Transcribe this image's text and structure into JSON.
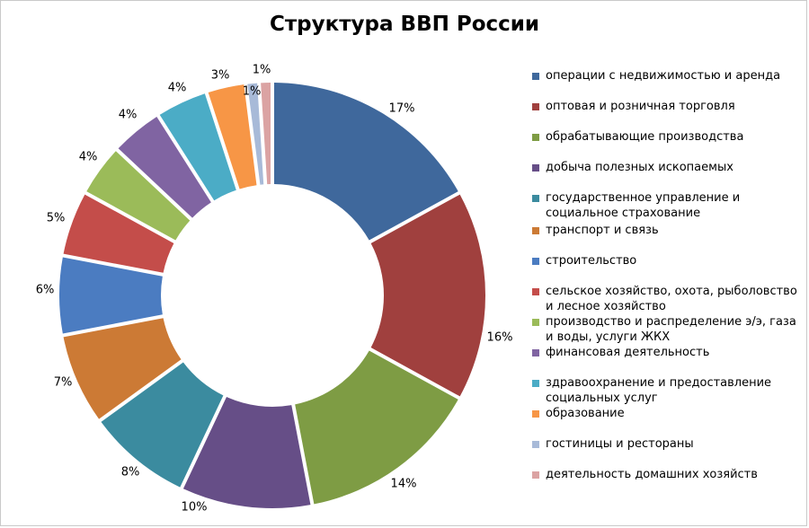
{
  "chart_data": {
    "type": "pie",
    "variant": "donut",
    "title": "Структура ВВП России",
    "legend_position": "right",
    "categories": [
      "операции с недвижимостью и аренда",
      "оптовая и розничная торговля",
      "обрабатывающие производства",
      "добыча полезных ископаемых",
      "государственное управление и социальное страхование",
      "транспорт и связь",
      "строительство",
      "сельское хозяйство, охота, рыболовство и лесное хозяйство",
      "производство и распределение э/э, газа и воды, услуги ЖКХ",
      "финансовая деятельность",
      "здравоохранение и предоставление социальных услуг",
      "образование",
      "гостиницы и рестораны",
      "деятельность домашних хозяйств"
    ],
    "values": [
      17,
      16,
      14,
      10,
      8,
      7,
      6,
      5,
      4,
      4,
      4,
      3,
      1,
      1
    ],
    "labels": [
      "17%",
      "16%",
      "14%",
      "10%",
      "8%",
      "7%",
      "6%",
      "5%",
      "4%",
      "4%",
      "4%",
      "3%",
      "1%",
      "1%"
    ],
    "colors": [
      "#3f689c",
      "#a0403e",
      "#7e9c44",
      "#664e87",
      "#3b8b9f",
      "#cc7a35",
      "#4b7cc1",
      "#c44d4a",
      "#9bbb59",
      "#8064a2",
      "#4bacc6",
      "#f79646",
      "#a8bad8",
      "#dba3a3"
    ]
  }
}
